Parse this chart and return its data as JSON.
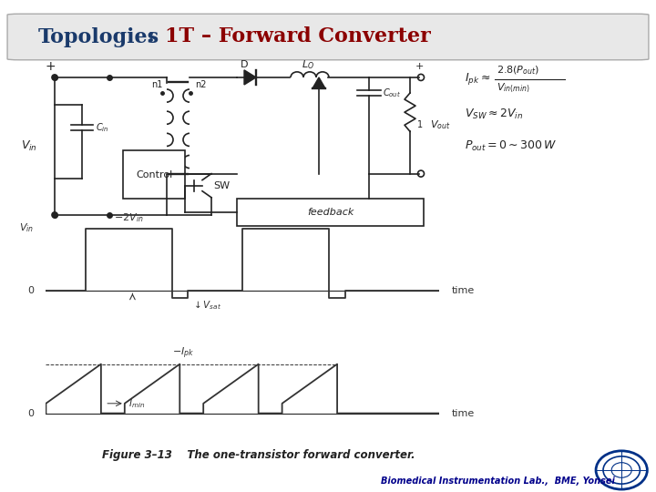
{
  "title_text1": "Topologies",
  "title_colon": " : ",
  "title_text2": "1T – Forward Converter",
  "title_color1": "#1a3a6b",
  "title_color2": "#8b0000",
  "title_bg": "#e8e8e8",
  "bg_color": "#ffffff",
  "footer_text": "Biomedical Instrumentation Lab.,  BME, Yonsei",
  "footer_color": "#00008b",
  "fig_caption": "Figure 3–13    The one-transistor forward converter.",
  "formula1_num": "2.8(P",
  "formula1_den": "V",
  "formula2": "$V_{SW} \\approx 2V_{in}$",
  "formula3": "$P_{out} = 0 \\sim 300\\,W$"
}
